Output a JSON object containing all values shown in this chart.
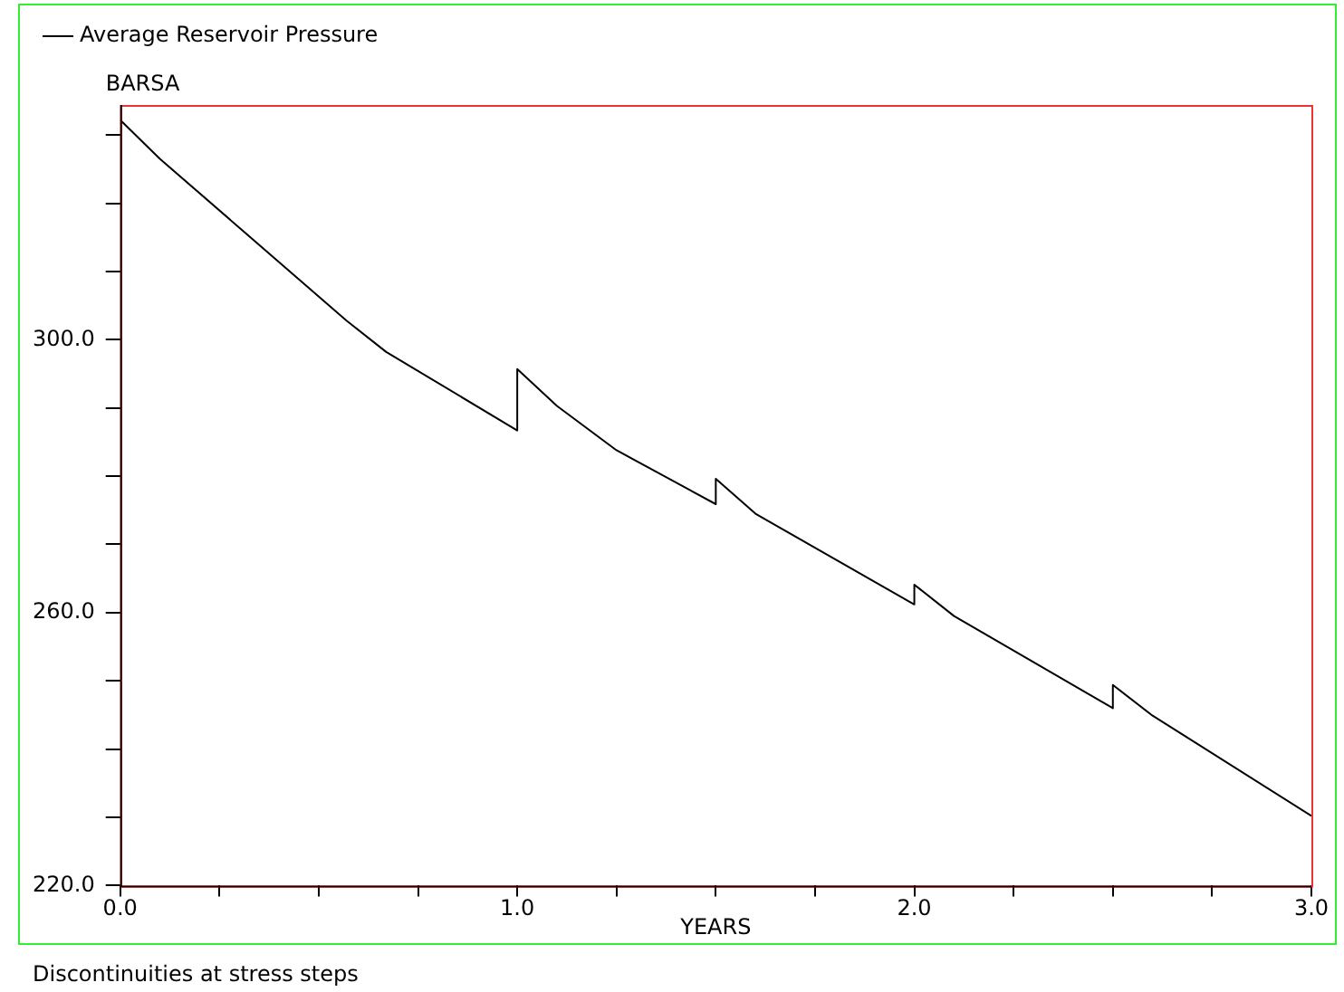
{
  "chart_data": {
    "type": "line",
    "ylabel": "BARSA",
    "xlabel": "YEARS",
    "annotations": [
      "Discontinuities at stress steps"
    ],
    "x": [
      0,
      0.1,
      0.57,
      0.67,
      1.0,
      1.0,
      1.1,
      1.25,
      1.5,
      1.5,
      1.6,
      2.0,
      2.0,
      2.1,
      2.5,
      2.5,
      2.6,
      3.0
    ],
    "series": [
      {
        "name": "Average Reservoir Pressure",
        "color": "#000000",
        "values": [
          332.2,
          326.5,
          302.8,
          298.2,
          286.7,
          295.7,
          290.3,
          283.8,
          275.9,
          279.6,
          274.5,
          261.2,
          264.1,
          259.5,
          246.0,
          249.4,
          244.9,
          230.2
        ]
      }
    ],
    "xlim": [
      0,
      3
    ],
    "ylim": [
      220,
      334.4
    ],
    "xticks": [
      {
        "value": 0,
        "label": "0.0"
      },
      {
        "value": 0.25,
        "label": null
      },
      {
        "value": 0.5,
        "label": null
      },
      {
        "value": 0.75,
        "label": null
      },
      {
        "value": 1,
        "label": "1.0"
      },
      {
        "value": 1.25,
        "label": null
      },
      {
        "value": 1.5,
        "label": null
      },
      {
        "value": 1.75,
        "label": null
      },
      {
        "value": 2,
        "label": "2.0"
      },
      {
        "value": 2.25,
        "label": null
      },
      {
        "value": 2.5,
        "label": null
      },
      {
        "value": 2.75,
        "label": null
      },
      {
        "value": 3,
        "label": "3.0"
      }
    ],
    "yticks": [
      {
        "value": 220,
        "label": "220.0"
      },
      {
        "value": 230,
        "label": null
      },
      {
        "value": 240,
        "label": null
      },
      {
        "value": 250,
        "label": null
      },
      {
        "value": 260,
        "label": "260.0"
      },
      {
        "value": 270,
        "label": null
      },
      {
        "value": 280,
        "label": null
      },
      {
        "value": 290,
        "label": null
      },
      {
        "value": 300,
        "label": "300.0"
      },
      {
        "value": 310,
        "label": null
      },
      {
        "value": 320,
        "label": null
      },
      {
        "value": 330,
        "label": null
      }
    ],
    "grid": false,
    "legend": "top left",
    "marker": "none",
    "line_style": "solid"
  }
}
